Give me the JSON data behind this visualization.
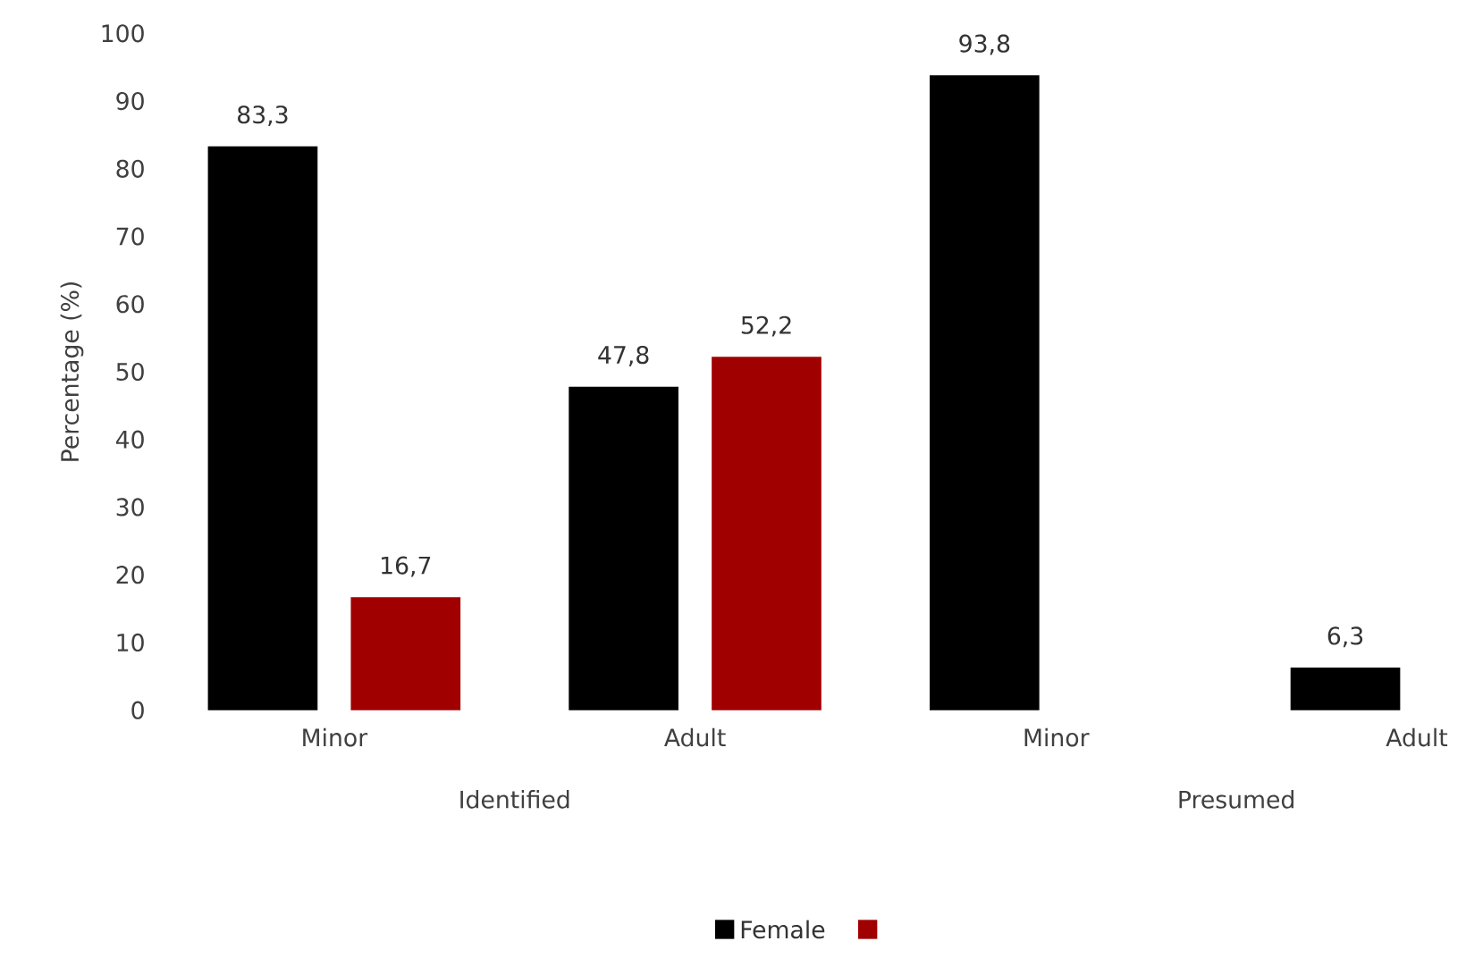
{
  "chart_data": {
    "type": "bar",
    "ylabel": "Percentage (%)",
    "categories": [
      "Minor",
      "Adult",
      "Minor",
      "Adult"
    ],
    "series": [
      {
        "name": "Female",
        "color": "#000000",
        "values": [
          83.3,
          47.8,
          93.8,
          6.3
        ],
        "value_labels": [
          "83,3",
          "47,8",
          "93,8",
          "6,3"
        ]
      },
      {
        "color": "#a00000",
        "values": [
          16.7,
          52.2,
          null,
          null
        ],
        "value_labels": [
          "16,7",
          "52,2",
          null,
          null
        ]
      }
    ],
    "annotations": [
      "Identified",
      "Presumed"
    ],
    "ylim": [
      0,
      100
    ],
    "yticks": [
      0,
      10,
      20,
      30,
      40,
      50,
      60,
      70,
      80,
      90,
      100
    ],
    "grid": false,
    "legend": "bottom"
  }
}
